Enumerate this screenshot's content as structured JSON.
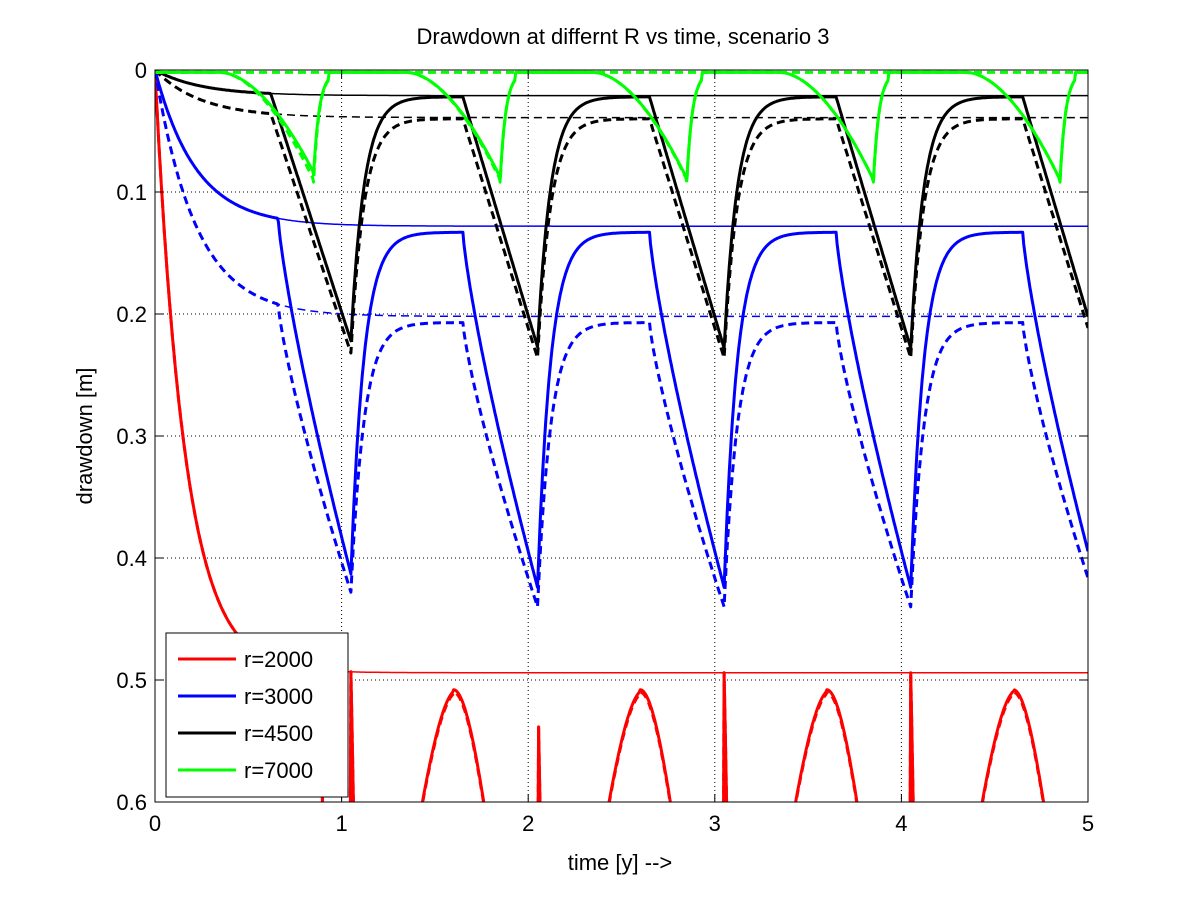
{
  "chart_data": {
    "type": "line",
    "title": "Drawdown at differnt R vs time, scenario 3",
    "xlabel": "time [y] -->",
    "ylabel": "drawdown [m]",
    "xlim": [
      0,
      5
    ],
    "ylim": [
      0,
      0.6
    ],
    "y_reversed": true,
    "grid": true,
    "legend_position": "bottom-left",
    "x_ticks": [
      "0",
      "1",
      "2",
      "3",
      "4",
      "5"
    ],
    "y_ticks": [
      "0",
      "0.1",
      "0.2",
      "0.3",
      "0.4",
      "0.5",
      "0.6"
    ],
    "series": [
      {
        "name": "r=2000",
        "color": "#ff0000",
        "steady_solid": 0.494,
        "steady_dashed": 0.494,
        "solid_peaks": [
          0.507,
          0.508,
          0.508,
          0.508
        ],
        "dashed_peaks": [
          0.509,
          0.51,
          0.51,
          0.51
        ]
      },
      {
        "name": "r=3000",
        "color": "#0000ff",
        "steady_solid": 0.128,
        "steady_dashed": 0.202,
        "solid_peaks": [
          0.413,
          0.424,
          0.424,
          0.424
        ],
        "dashed_peaks": [
          0.428,
          0.44,
          0.44,
          0.44
        ],
        "solid_recovery": [
          0.133,
          0.133,
          0.133,
          0.133
        ],
        "dashed_recovery": [
          0.207,
          0.207,
          0.207,
          0.207
        ]
      },
      {
        "name": "r=4500",
        "color": "#000000",
        "steady_solid": 0.021,
        "steady_dashed": 0.039,
        "solid_peaks": [
          0.222,
          0.227,
          0.228,
          0.228
        ],
        "dashed_peaks": [
          0.232,
          0.236,
          0.236,
          0.236
        ],
        "solid_recovery": [
          0.022,
          0.022,
          0.022,
          0.022
        ],
        "dashed_recovery": [
          0.04,
          0.04,
          0.04,
          0.04
        ]
      },
      {
        "name": "r=7000",
        "color": "#00ff00",
        "steady_solid": 0.002,
        "steady_dashed": 0.002,
        "solid_peaks": [
          0.084,
          0.088,
          0.089,
          0.09
        ],
        "dashed_peaks": [
          0.09,
          0.09,
          0.09,
          0.09
        ]
      }
    ]
  }
}
